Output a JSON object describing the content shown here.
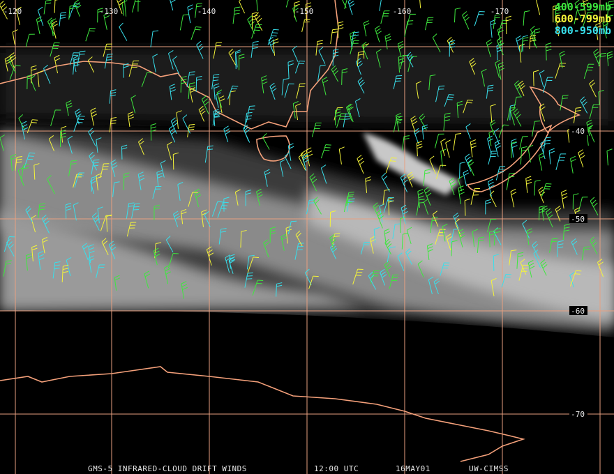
{
  "map": {
    "longitude_labels": [
      -120,
      -130,
      -140,
      -150,
      -160,
      -170
    ],
    "latitude_labels": [
      -40,
      -50,
      -60,
      -70
    ],
    "legend": [
      {
        "label": "400-599mb",
        "color": "#3ee83e"
      },
      {
        "label": "600-799mb",
        "color": "#f4f43a"
      },
      {
        "label": "800-950mb",
        "color": "#38e0ec"
      }
    ],
    "footer": {
      "title": "GMS-5 INFRARED-CLOUD DRIFT WINDS",
      "time": "12:00 UTC",
      "date": "16MAY01",
      "source": "UW-CIMSS"
    }
  }
}
